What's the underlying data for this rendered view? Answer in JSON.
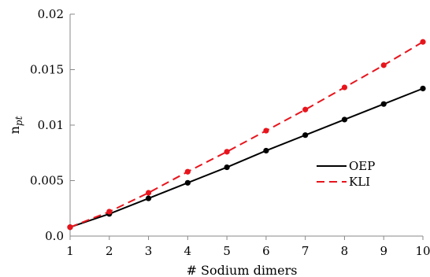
{
  "chart_data": {
    "type": "line",
    "xlabel": "# Sodium dimers",
    "ylabel_main": "n",
    "ylabel_sub": "pt",
    "xlim": [
      1,
      10
    ],
    "ylim": [
      0,
      0.02
    ],
    "x_ticks": [
      1,
      2,
      3,
      4,
      5,
      6,
      7,
      8,
      9,
      10
    ],
    "y_ticks": [
      {
        "value": 0,
        "label": "0.0"
      },
      {
        "value": 0.005,
        "label": "0.005"
      },
      {
        "value": 0.01,
        "label": "0.01"
      },
      {
        "value": 0.015,
        "label": "0.015"
      },
      {
        "value": 0.02,
        "label": "0.02"
      }
    ],
    "grid": false,
    "legend_position": "right",
    "x": [
      1,
      2,
      3,
      4,
      5,
      6,
      7,
      8,
      9,
      10
    ],
    "series": [
      {
        "name": "OEP",
        "color": "#000000",
        "dash": "solid",
        "values": [
          0.0008,
          0.002,
          0.0034,
          0.0048,
          0.0062,
          0.0077,
          0.0091,
          0.0105,
          0.0119,
          0.0133
        ]
      },
      {
        "name": "KLI",
        "color": "#e8141c",
        "dash": "dashed",
        "values": [
          0.0008,
          0.0022,
          0.0039,
          0.0058,
          0.0076,
          0.0095,
          0.0114,
          0.0134,
          0.0154,
          0.0175
        ]
      }
    ]
  }
}
